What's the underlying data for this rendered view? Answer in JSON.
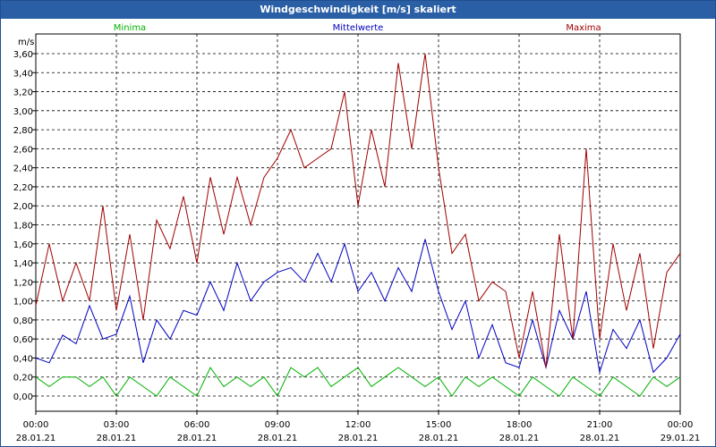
{
  "window": {
    "title": "Windgeschwindigkeit [m/s] skaliert"
  },
  "chart_data": {
    "type": "line",
    "title": "Windgeschwindigkeit [m/s] skaliert",
    "ylabel": "m/s",
    "ylim": [
      0,
      3.6
    ],
    "yticks": [
      "0,00",
      "0,20",
      "0,40",
      "0,60",
      "0,80",
      "1,00",
      "1,20",
      "1,40",
      "1,60",
      "1,80",
      "2,00",
      "2,20",
      "2,40",
      "2,60",
      "2,80",
      "3,00",
      "3,20",
      "3,40",
      "3,60"
    ],
    "xlim": [
      0,
      24
    ],
    "xticks": [
      {
        "time": "00:00",
        "date": "28.01.21"
      },
      {
        "time": "03:00",
        "date": "28.01.21"
      },
      {
        "time": "06:00",
        "date": "28.01.21"
      },
      {
        "time": "09:00",
        "date": "28.01.21"
      },
      {
        "time": "12:00",
        "date": "28.01.21"
      },
      {
        "time": "15:00",
        "date": "28.01.21"
      },
      {
        "time": "18:00",
        "date": "28.01.21"
      },
      {
        "time": "21:00",
        "date": "28.01.21"
      },
      {
        "time": "00:00",
        "date": "29.01.21"
      }
    ],
    "grid": true,
    "legend_position": "top",
    "series": [
      {
        "name": "Minima",
        "color": "#00b000",
        "x": [
          0,
          0.5,
          1,
          1.5,
          2,
          2.5,
          3,
          3.5,
          4,
          4.5,
          5,
          5.5,
          6,
          6.5,
          7,
          7.5,
          8,
          8.5,
          9,
          9.5,
          10,
          10.5,
          11,
          11.5,
          12,
          12.5,
          13,
          13.5,
          14,
          14.5,
          15,
          15.5,
          16,
          16.5,
          17,
          17.5,
          18,
          18.5,
          19,
          19.5,
          20,
          20.5,
          21,
          21.5,
          22,
          22.5,
          23,
          23.5,
          24
        ],
        "values": [
          0.2,
          0.1,
          0.2,
          0.2,
          0.1,
          0.2,
          0.0,
          0.2,
          0.1,
          0.0,
          0.2,
          0.1,
          0.0,
          0.3,
          0.1,
          0.2,
          0.1,
          0.2,
          0.0,
          0.3,
          0.2,
          0.3,
          0.1,
          0.2,
          0.3,
          0.1,
          0.2,
          0.3,
          0.2,
          0.1,
          0.2,
          0.0,
          0.2,
          0.1,
          0.2,
          0.1,
          0.0,
          0.2,
          0.1,
          0.0,
          0.2,
          0.1,
          0.0,
          0.2,
          0.1,
          0.0,
          0.2,
          0.1,
          0.2
        ]
      },
      {
        "name": "Mittelwerte",
        "color": "#0000c0",
        "x": [
          0,
          0.5,
          1,
          1.5,
          2,
          2.5,
          3,
          3.5,
          4,
          4.5,
          5,
          5.5,
          6,
          6.5,
          7,
          7.5,
          8,
          8.5,
          9,
          9.5,
          10,
          10.5,
          11,
          11.5,
          12,
          12.5,
          13,
          13.5,
          14,
          14.5,
          15,
          15.5,
          16,
          16.5,
          17,
          17.5,
          18,
          18.5,
          19,
          19.5,
          20,
          20.5,
          21,
          21.5,
          22,
          22.5,
          23,
          23.5,
          24
        ],
        "values": [
          0.4,
          0.35,
          0.64,
          0.55,
          0.95,
          0.6,
          0.65,
          1.05,
          0.35,
          0.8,
          0.6,
          0.9,
          0.85,
          1.2,
          0.9,
          1.4,
          1.0,
          1.2,
          1.3,
          1.35,
          1.2,
          1.5,
          1.2,
          1.6,
          1.1,
          1.3,
          1.0,
          1.35,
          1.1,
          1.65,
          1.1,
          0.7,
          1.0,
          0.4,
          0.75,
          0.35,
          0.3,
          0.8,
          0.3,
          0.9,
          0.6,
          1.1,
          0.25,
          0.7,
          0.5,
          0.8,
          0.25,
          0.4,
          0.65
        ]
      },
      {
        "name": "Maxima",
        "color": "#a00000",
        "x": [
          0,
          0.5,
          1,
          1.5,
          2,
          2.5,
          3,
          3.5,
          4,
          4.5,
          5,
          5.5,
          6,
          6.5,
          7,
          7.5,
          8,
          8.5,
          9,
          9.5,
          10,
          10.5,
          11,
          11.5,
          12,
          12.5,
          13,
          13.5,
          14,
          14.5,
          15,
          15.5,
          16,
          16.5,
          17,
          17.5,
          18,
          18.5,
          19,
          19.5,
          20,
          20.5,
          21,
          21.5,
          22,
          22.5,
          23,
          23.5,
          24
        ],
        "values": [
          0.95,
          1.6,
          1.0,
          1.4,
          1.0,
          2.0,
          0.9,
          1.7,
          0.8,
          1.85,
          1.55,
          2.1,
          1.4,
          2.3,
          1.7,
          2.3,
          1.8,
          2.3,
          2.5,
          2.8,
          2.4,
          2.5,
          2.6,
          3.2,
          2.0,
          2.8,
          2.2,
          3.5,
          2.6,
          3.6,
          2.4,
          1.5,
          1.7,
          1.0,
          1.2,
          1.1,
          0.4,
          1.1,
          0.3,
          1.7,
          0.6,
          2.6,
          0.6,
          1.6,
          0.9,
          1.5,
          0.5,
          1.3,
          1.5
        ]
      }
    ]
  }
}
